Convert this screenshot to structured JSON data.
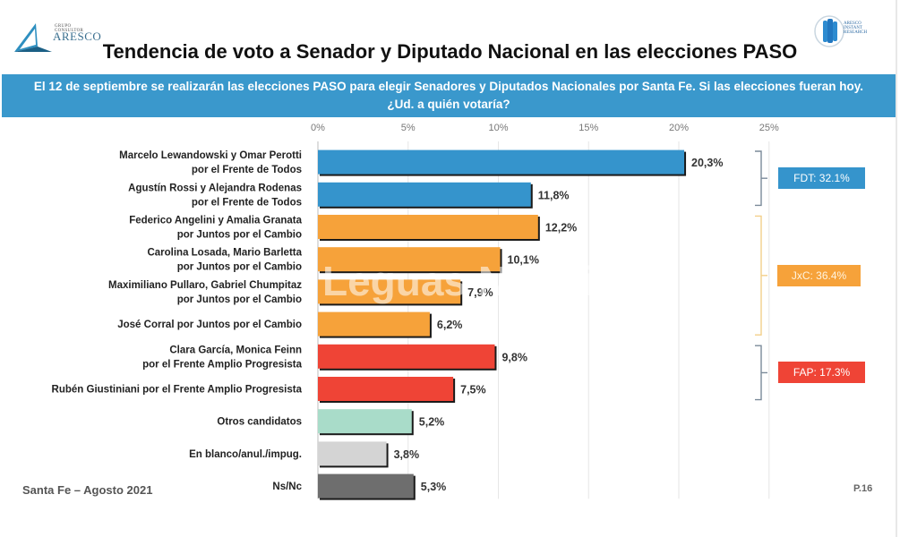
{
  "header": {
    "logo_left_small": "GRUPO CONSULTOR",
    "logo_left_brand": "ARESCO",
    "logo_right_text": "ARESCO INSTANT RESEARCH",
    "title": "Tendencia de voto a Senador y Diputado Nacional en las elecciones PASO",
    "banner_line1": "El 12 de septiembre se realizarán las elecciones PASO para elegir Senadores y Diputados Nacionales por Santa Fe. Si las elecciones fueran hoy.",
    "banner_line2": "¿Ud. a quién votaría?"
  },
  "chart_data": {
    "type": "bar",
    "orientation": "horizontal",
    "title": "Tendencia de voto a Senador y Diputado Nacional en las elecciones PASO",
    "xlabel": "",
    "ylabel": "",
    "xlim": [
      0,
      25
    ],
    "x_ticks": [
      "0%",
      "5%",
      "10%",
      "15%",
      "20%",
      "25%"
    ],
    "x_tick_values": [
      0,
      5,
      10,
      15,
      20,
      25
    ],
    "grid": true,
    "categories": [
      [
        "Marcelo Lewandowski y Omar Perotti",
        "por el Frente de Todos"
      ],
      [
        "Agustín Rossi y Alejandra Rodenas",
        "por el Frente de Todos"
      ],
      [
        "Federico Angelini y Amalia Granata",
        "por Juntos por el Cambio"
      ],
      [
        "Carolina Losada, Mario Barletta",
        "por Juntos por el Cambio"
      ],
      [
        "Maximiliano Pullaro, Gabriel Chumpitaz",
        "por Juntos por el Cambio"
      ],
      [
        "José Corral por Juntos por el Cambio"
      ],
      [
        "Clara García, Monica Feinn",
        "por el Frente Amplio Progresista"
      ],
      [
        "Rubén Giustiniani por el Frente Amplio Progresista"
      ],
      [
        "Otros candidatos"
      ],
      [
        "En blanco/anul./impug."
      ],
      [
        "Ns/Nc"
      ]
    ],
    "values": [
      20.3,
      11.8,
      12.2,
      10.1,
      7.9,
      6.2,
      9.8,
      7.5,
      5.2,
      3.8,
      5.3
    ],
    "value_labels": [
      "20,3%",
      "11,8%",
      "12,2%",
      "10,1%",
      "7,9%",
      "6,2%",
      "9,8%",
      "7,5%",
      "5,2%",
      "3,8%",
      "5,3%"
    ],
    "bar_colors": [
      "#3594cc",
      "#3594cc",
      "#f6a23a",
      "#f6a23a",
      "#f6a23a",
      "#f6a23a",
      "#ef4436",
      "#ef4436",
      "#a9dcc9",
      "#d4d4d4",
      "#6e6e6e"
    ],
    "groups": [
      {
        "label": "FDT: 32.1%",
        "value": 32.1,
        "rows": [
          0,
          1
        ],
        "color": "#3594cc"
      },
      {
        "label": "JxC: 36.4%",
        "value": 36.4,
        "rows": [
          2,
          5
        ],
        "color": "#f6a23a"
      },
      {
        "label": "FAP: 17.3%",
        "value": 17.3,
        "rows": [
          6,
          7
        ],
        "color": "#ef4436"
      }
    ],
    "watermark": "Leguas Noticias"
  },
  "footer": {
    "left": "Santa Fe – Agosto 2021",
    "right": "P.16"
  }
}
